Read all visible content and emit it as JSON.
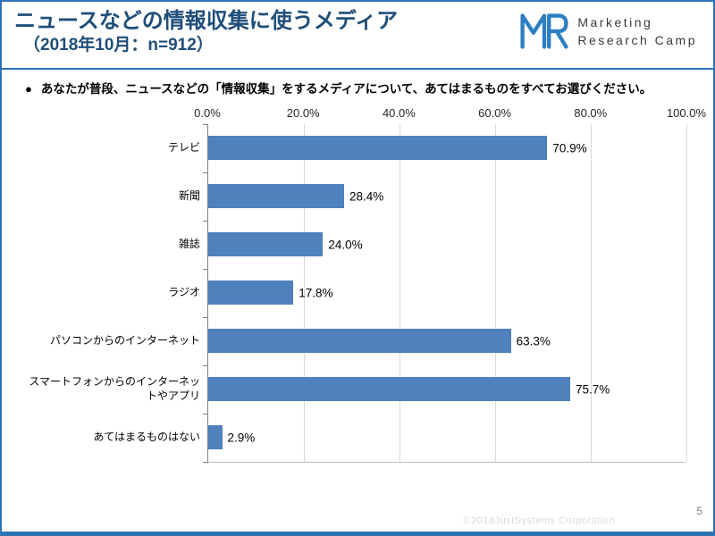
{
  "header": {
    "title": "ニュースなどの情報収集に使うメディア",
    "subtitle": "（2018年10月：n=912）",
    "logo": {
      "line1": "Marketing",
      "line2": "Research Camp"
    }
  },
  "question": {
    "text": "あなたが普段、ニュースなどの「情報収集」をするメディアについて、あてはまるものをすべてお選びください。"
  },
  "chart_data": {
    "type": "bar",
    "orientation": "horizontal",
    "title": "ニュースなどの情報収集に使うメディア（2018年10月：n=912）",
    "categories": [
      "テレビ",
      "新聞",
      "雑誌",
      "ラジオ",
      "パソコンからのインターネット",
      "スマートフォンからのインターネットやアプリ",
      "あてはまるものはない"
    ],
    "values": [
      70.9,
      28.4,
      24.0,
      17.8,
      63.3,
      75.7,
      2.9
    ],
    "value_labels": [
      "70.9%",
      "28.4%",
      "24.0%",
      "17.8%",
      "63.3%",
      "75.7%",
      "2.9%"
    ],
    "xlim": [
      0,
      100
    ],
    "x_ticks": [
      "0.0%",
      "20.0%",
      "40.0%",
      "60.0%",
      "80.0%",
      "100.0%"
    ],
    "grid": true,
    "legend": false,
    "bar_color": "#4F81BD",
    "grid_color": "#D9D9D9"
  },
  "colors": {
    "accent_blue": "#2E74B5",
    "title_blue": "#1F4E79",
    "logo_blue": "#2D7FC1"
  },
  "footer": {
    "copyright": "©2018JustSystems Corporation",
    "page_number": "5"
  }
}
